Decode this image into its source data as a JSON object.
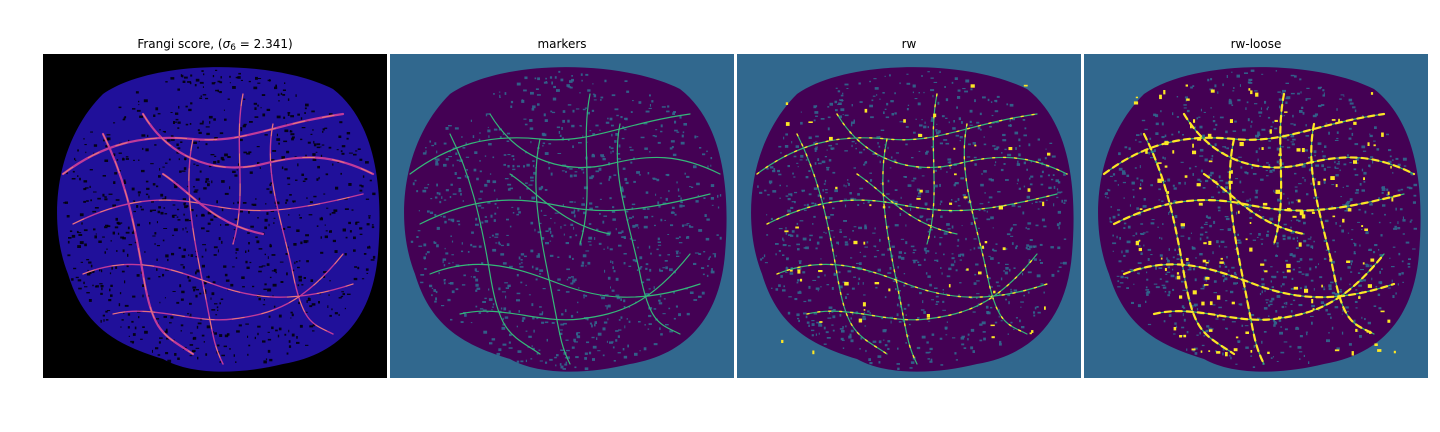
{
  "panels": [
    {
      "title_prefix": "Frangi score, (",
      "title_symbol": "σ",
      "title_subscript": "6",
      "title_suffix": " = 2.341)",
      "colormap": "plasma",
      "background": "#000000",
      "blob": "#20109a",
      "vessel": "#c03a9a",
      "highlight": "#f59a6a"
    },
    {
      "title": "markers",
      "colormap": "viridis",
      "background": "#31688e",
      "blob": "#440154",
      "vessel": "#35b779",
      "highlight": "#35b779"
    },
    {
      "title": "rw",
      "colormap": "viridis",
      "background": "#31688e",
      "blob": "#440154",
      "vessel": "#35b779",
      "highlight": "#fde725"
    },
    {
      "title": "rw-loose",
      "colormap": "viridis",
      "background": "#31688e",
      "blob": "#440154",
      "vessel": "#35b779",
      "highlight": "#fde725"
    }
  ]
}
